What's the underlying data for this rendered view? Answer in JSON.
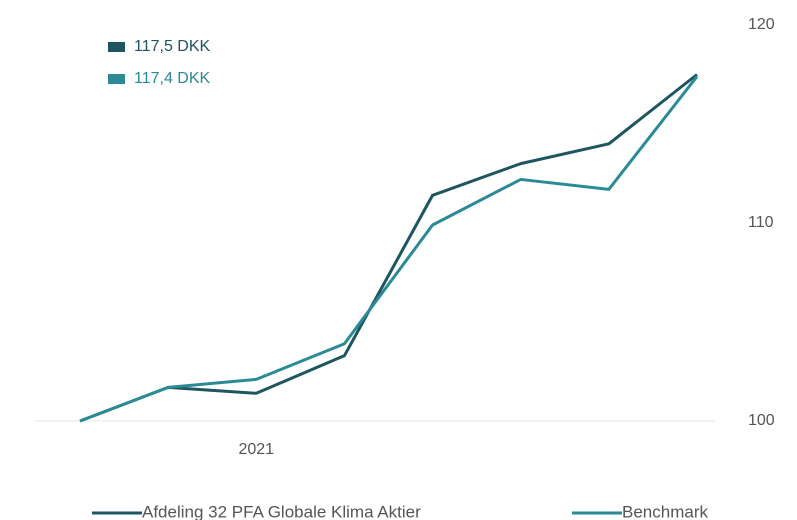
{
  "chart_data": {
    "type": "line",
    "categories": [
      null,
      null,
      "2021",
      null,
      null,
      null,
      null,
      null
    ],
    "series": [
      {
        "name": "Afdeling 32 PFA Globale Klima Aktier",
        "color": "#1d5560",
        "values": [
          100,
          101.7,
          101.4,
          103.3,
          111.4,
          113.0,
          114.0,
          117.5
        ],
        "value_label": "117,5 DKK"
      },
      {
        "name": "Benchmark",
        "color": "#2a8a96",
        "values": [
          100,
          101.7,
          102.1,
          103.9,
          109.9,
          112.2,
          111.7,
          117.4
        ],
        "value_label": "117,4 DKK"
      }
    ],
    "ylim": [
      100,
      120
    ],
    "yticks": [
      100,
      110,
      120
    ],
    "grid": false
  }
}
